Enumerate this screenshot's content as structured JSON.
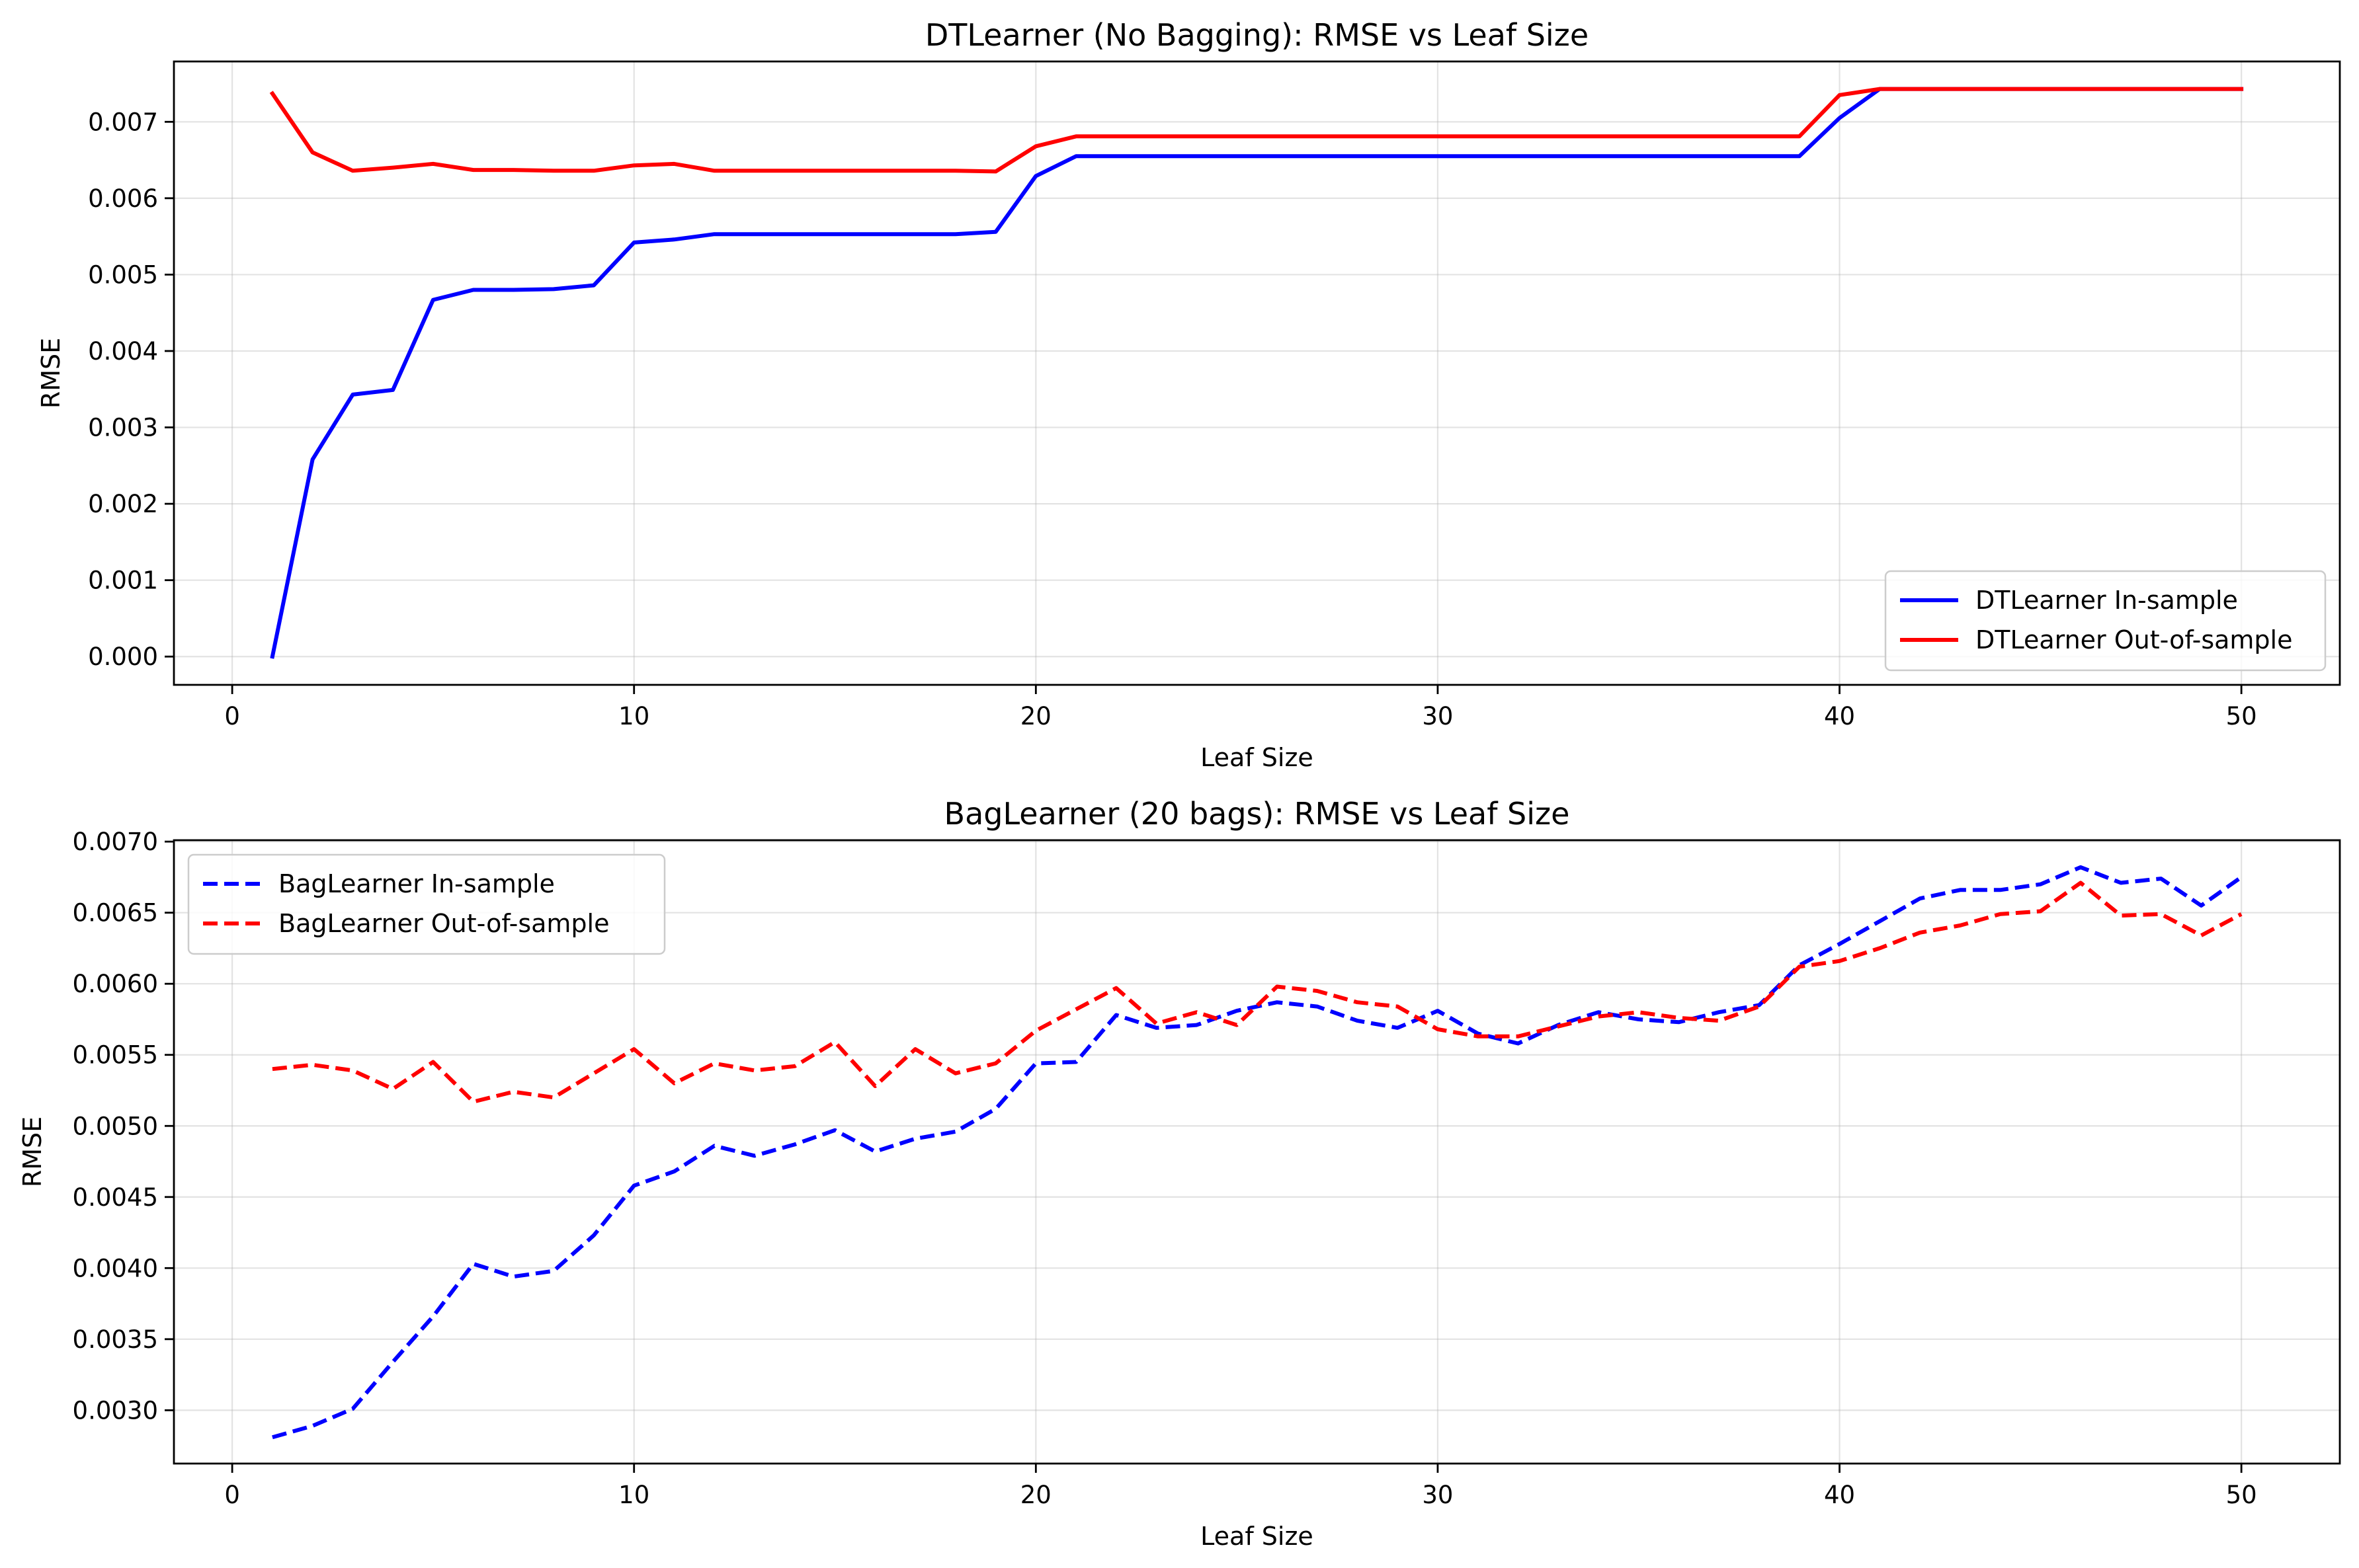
{
  "colors": {
    "blue": "#0000ff",
    "red": "#ff0000",
    "legend_edge": "#cccccc"
  },
  "chart_data": [
    {
      "type": "line",
      "title": "DTLearner (No Bagging): RMSE vs Leaf Size",
      "xlabel": "Leaf Size",
      "ylabel": "RMSE",
      "xlim": [
        -1.45,
        52.45
      ],
      "ylim": [
        -0.00037,
        0.00779
      ],
      "xticks": [
        0,
        10,
        20,
        30,
        40,
        50
      ],
      "xtick_labels": [
        "0",
        "10",
        "20",
        "30",
        "40",
        "50"
      ],
      "yticks": [
        0,
        0.001,
        0.002,
        0.003,
        0.004,
        0.005,
        0.006,
        0.007
      ],
      "ytick_labels": [
        "0.000",
        "0.001",
        "0.002",
        "0.003",
        "0.004",
        "0.005",
        "0.006",
        "0.007"
      ],
      "grid": true,
      "legend_position": "lower-right",
      "x": [
        1,
        2,
        3,
        4,
        5,
        6,
        7,
        8,
        9,
        10,
        11,
        12,
        13,
        14,
        15,
        16,
        17,
        18,
        19,
        20,
        21,
        22,
        23,
        24,
        25,
        26,
        27,
        28,
        29,
        30,
        31,
        32,
        33,
        34,
        35,
        36,
        37,
        38,
        39,
        40,
        41,
        42,
        43,
        44,
        45,
        46,
        47,
        48,
        49,
        50
      ],
      "series": [
        {
          "name": "DTLearner In-sample",
          "color": "#0000ff",
          "style": "solid",
          "values": [
            0.0,
            0.00258,
            0.00343,
            0.00349,
            0.00467,
            0.0048,
            0.0048,
            0.00481,
            0.00486,
            0.00542,
            0.00546,
            0.00553,
            0.00553,
            0.00553,
            0.00553,
            0.00553,
            0.00553,
            0.00553,
            0.00556,
            0.00629,
            0.00655,
            0.00655,
            0.00655,
            0.00655,
            0.00655,
            0.00655,
            0.00655,
            0.00655,
            0.00655,
            0.00655,
            0.00655,
            0.00655,
            0.00655,
            0.00655,
            0.00655,
            0.00655,
            0.00655,
            0.00655,
            0.00655,
            0.00705,
            0.00743,
            0.00743,
            0.00743,
            0.00743,
            0.00743,
            0.00743,
            0.00743,
            0.00743,
            0.00743,
            0.00743
          ]
        },
        {
          "name": "DTLearner Out-of-sample",
          "color": "#ff0000",
          "style": "solid",
          "values": [
            0.00737,
            0.0066,
            0.00636,
            0.0064,
            0.00645,
            0.00637,
            0.00637,
            0.00636,
            0.00636,
            0.00643,
            0.00645,
            0.00636,
            0.00636,
            0.00636,
            0.00636,
            0.00636,
            0.00636,
            0.00636,
            0.00635,
            0.00668,
            0.00681,
            0.00681,
            0.00681,
            0.00681,
            0.00681,
            0.00681,
            0.00681,
            0.00681,
            0.00681,
            0.00681,
            0.00681,
            0.00681,
            0.00681,
            0.00681,
            0.00681,
            0.00681,
            0.00681,
            0.00681,
            0.00681,
            0.00735,
            0.00743,
            0.00743,
            0.00743,
            0.00743,
            0.00743,
            0.00743,
            0.00743,
            0.00743,
            0.00743,
            0.00743
          ]
        }
      ]
    },
    {
      "type": "line",
      "title": "BagLearner (20 bags): RMSE vs Leaf Size",
      "xlabel": "Leaf Size",
      "ylabel": "RMSE",
      "xlim": [
        -1.45,
        52.45
      ],
      "ylim": [
        0.002625,
        0.00701
      ],
      "xticks": [
        0,
        10,
        20,
        30,
        40,
        50
      ],
      "xtick_labels": [
        "0",
        "10",
        "20",
        "30",
        "40",
        "50"
      ],
      "yticks": [
        0.003,
        0.0035,
        0.004,
        0.0045,
        0.005,
        0.0055,
        0.006,
        0.0065,
        0.007
      ],
      "ytick_labels": [
        "0.0030",
        "0.0035",
        "0.0040",
        "0.0045",
        "0.0050",
        "0.0055",
        "0.0060",
        "0.0065",
        "0.0070"
      ],
      "grid": true,
      "legend_position": "upper-left",
      "x": [
        1,
        2,
        3,
        4,
        5,
        6,
        7,
        8,
        9,
        10,
        11,
        12,
        13,
        14,
        15,
        16,
        17,
        18,
        19,
        20,
        21,
        22,
        23,
        24,
        25,
        26,
        27,
        28,
        29,
        30,
        31,
        32,
        33,
        34,
        35,
        36,
        37,
        38,
        39,
        40,
        41,
        42,
        43,
        44,
        45,
        46,
        47,
        48,
        49,
        50
      ],
      "series": [
        {
          "name": "BagLearner In-sample",
          "color": "#0000ff",
          "style": "dashed",
          "values": [
            0.00281,
            0.00289,
            0.00301,
            0.00334,
            0.00366,
            0.00403,
            0.00394,
            0.00398,
            0.00423,
            0.00458,
            0.00468,
            0.00486,
            0.00479,
            0.00487,
            0.00497,
            0.00482,
            0.00491,
            0.00496,
            0.00512,
            0.00544,
            0.00545,
            0.00578,
            0.00569,
            0.00571,
            0.00581,
            0.00587,
            0.00584,
            0.00574,
            0.00569,
            0.00581,
            0.00565,
            0.00558,
            0.00571,
            0.0058,
            0.00575,
            0.00573,
            0.0058,
            0.00585,
            0.00613,
            0.00628,
            0.00644,
            0.0066,
            0.00666,
            0.00666,
            0.0067,
            0.00682,
            0.00671,
            0.00674,
            0.00655,
            0.00675
          ]
        },
        {
          "name": "BagLearner Out-of-sample",
          "color": "#ff0000",
          "style": "dashed",
          "values": [
            0.0054,
            0.00543,
            0.00539,
            0.00526,
            0.00545,
            0.00517,
            0.00524,
            0.0052,
            0.00537,
            0.00554,
            0.0053,
            0.00544,
            0.00539,
            0.00542,
            0.00559,
            0.00528,
            0.00554,
            0.00537,
            0.00544,
            0.00567,
            0.00582,
            0.00597,
            0.00572,
            0.0058,
            0.00571,
            0.00598,
            0.00595,
            0.00587,
            0.00584,
            0.00568,
            0.00563,
            0.00563,
            0.0057,
            0.00577,
            0.0058,
            0.00576,
            0.00574,
            0.00584,
            0.00612,
            0.00616,
            0.00625,
            0.00636,
            0.00641,
            0.00649,
            0.00651,
            0.00671,
            0.00648,
            0.00649,
            0.00634,
            0.00649
          ]
        }
      ]
    }
  ]
}
